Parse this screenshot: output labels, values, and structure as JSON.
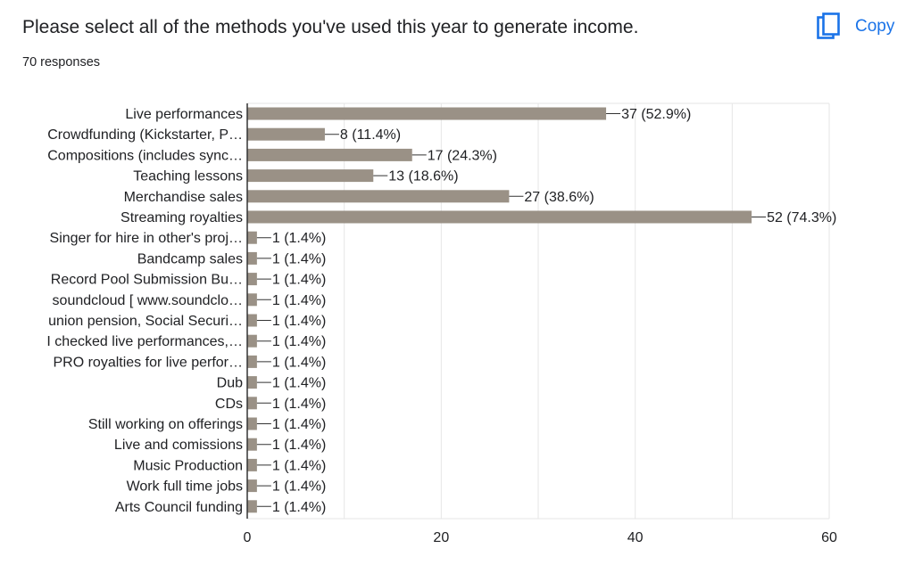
{
  "header": {
    "question": "Please select all of the methods you've used this year to generate income.",
    "responses": "70 responses",
    "copy_label": "Copy",
    "copy_icon": "copy-icon"
  },
  "colors": {
    "bar": "#9a9186",
    "accent": "#1a73e8",
    "grid": "#e6e6e6",
    "axis": "#333333",
    "text": "#202124"
  },
  "chart_data": {
    "type": "bar",
    "orientation": "horizontal",
    "title": "",
    "xlabel": "",
    "ylabel": "",
    "xlim": [
      0,
      60
    ],
    "xticks": [
      0,
      20,
      40,
      60
    ],
    "grid": true,
    "categories": [
      "Live performances",
      "Crowdfunding (Kickstarter, P…",
      "Compositions (includes sync…",
      "Teaching lessons",
      "Merchandise sales",
      "Streaming royalties",
      "Singer for hire in other's proj…",
      "Bandcamp sales",
      "Record Pool Submission Bu…",
      "soundcloud [ www.soundclo…",
      "union pension, Social Securi…",
      "I checked live performances,…",
      "PRO royalties for live perfor…",
      "Dub",
      "CDs",
      "Still working on offerings",
      "Live and comissions",
      "Music Production",
      "Work full time jobs",
      "Arts Council funding"
    ],
    "values": [
      37,
      8,
      17,
      13,
      27,
      52,
      1,
      1,
      1,
      1,
      1,
      1,
      1,
      1,
      1,
      1,
      1,
      1,
      1,
      1
    ],
    "data_labels": [
      "37 (52.9%)",
      "8 (11.4%)",
      "17 (24.3%)",
      "13 (18.6%)",
      "27 (38.6%)",
      "52 (74.3%)",
      "1 (1.4%)",
      "1 (1.4%)",
      "1 (1.4%)",
      "1 (1.4%)",
      "1 (1.4%)",
      "1 (1.4%)",
      "1 (1.4%)",
      "1 (1.4%)",
      "1 (1.4%)",
      "1 (1.4%)",
      "1 (1.4%)",
      "1 (1.4%)",
      "1 (1.4%)",
      "1 (1.4%)"
    ]
  }
}
